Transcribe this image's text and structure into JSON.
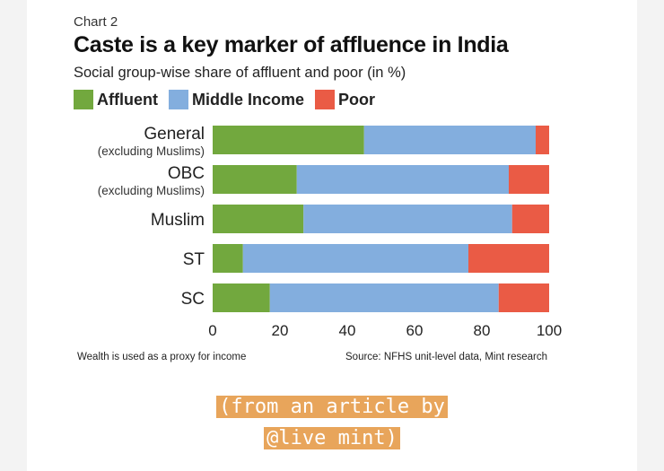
{
  "header": {
    "chart_number": "Chart 2"
  },
  "footer": {
    "note": "Wealth is used as a proxy for income",
    "source": "Source: NFHS unit-level data, Mint research"
  },
  "overlay": {
    "line1": "(from an article by",
    "line2": "@live mint)"
  },
  "colors": {
    "affluent": "#72a83e",
    "middle": "#83aede",
    "poor": "#ea5b45"
  },
  "chart_data": {
    "type": "bar",
    "orientation": "horizontal",
    "stacked": true,
    "title": "Caste is a key marker of affluence in India",
    "subtitle": "Social group-wise share of affluent and poor (in %)",
    "categories": [
      {
        "name": "General",
        "note": "(excluding Muslims)"
      },
      {
        "name": "OBC",
        "note": "(excluding Muslims)"
      },
      {
        "name": "Muslim",
        "note": ""
      },
      {
        "name": "ST",
        "note": ""
      },
      {
        "name": "SC",
        "note": ""
      }
    ],
    "series": [
      {
        "name": "Affluent",
        "values": [
          45,
          25,
          27,
          9,
          17
        ]
      },
      {
        "name": "Middle Income",
        "values": [
          51,
          63,
          62,
          67,
          68
        ]
      },
      {
        "name": "Poor",
        "values": [
          4,
          12,
          11,
          24,
          15
        ]
      }
    ],
    "xlim": [
      0,
      100
    ],
    "xticks": [
      0,
      20,
      40,
      60,
      80,
      100
    ],
    "grid": false,
    "legend_position": "top-left"
  }
}
